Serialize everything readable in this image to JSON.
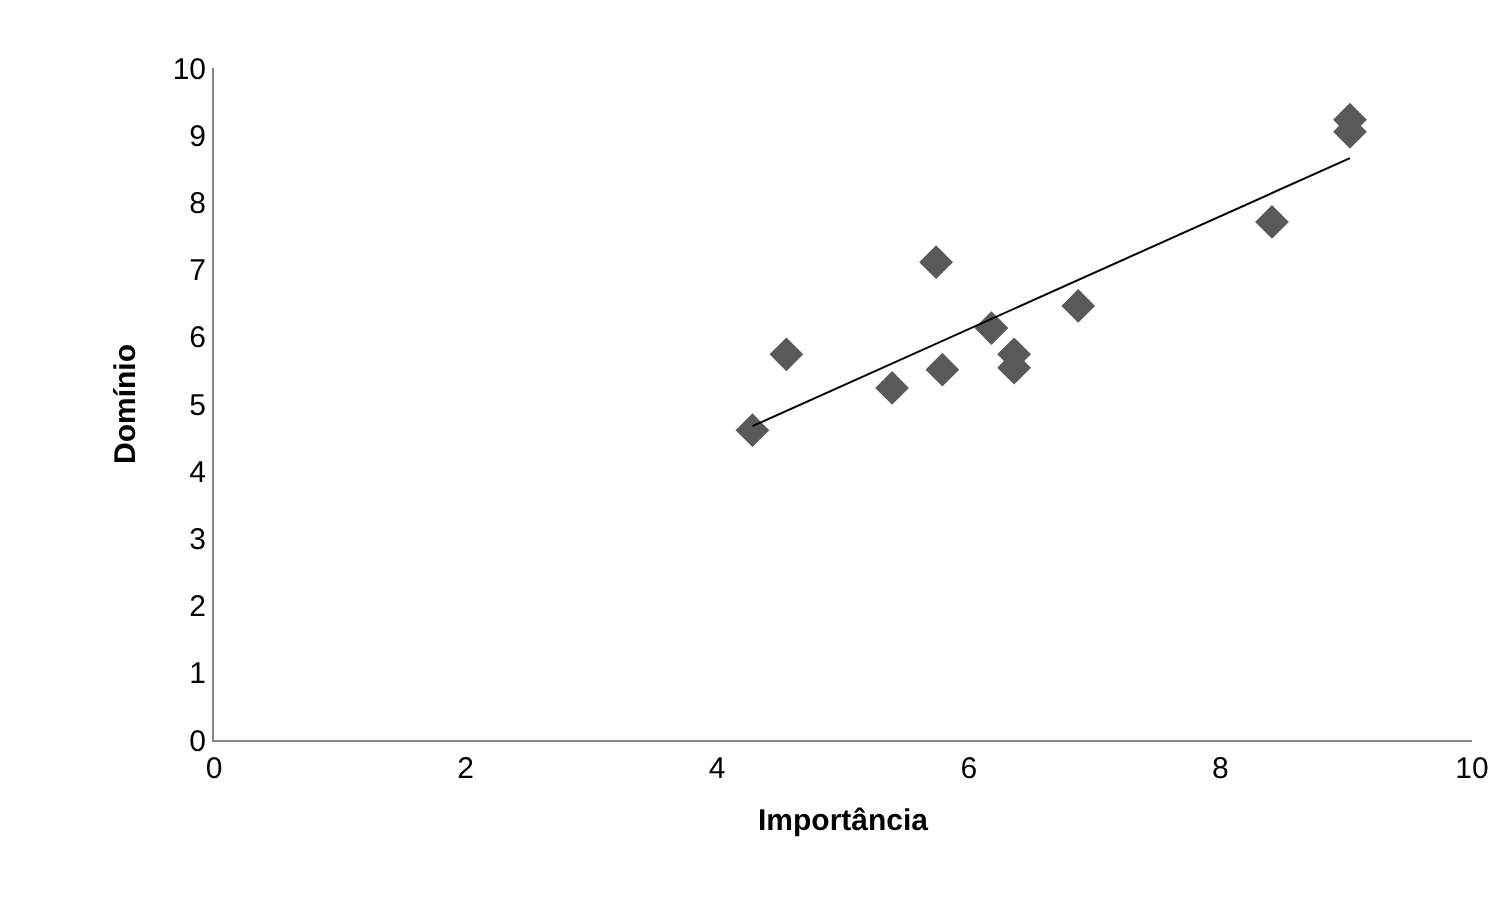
{
  "chart_data": {
    "type": "scatter",
    "xlabel": "Importância",
    "ylabel": "Domínio",
    "xlim": [
      0,
      10
    ],
    "ylim": [
      0,
      10
    ],
    "xticks": [
      0,
      2,
      4,
      6,
      8,
      10
    ],
    "yticks": [
      0,
      1,
      2,
      3,
      4,
      5,
      6,
      7,
      8,
      9,
      10
    ],
    "grid": false,
    "marker": "diamond",
    "series": [
      {
        "color": "#595959",
        "x": [
          4.28,
          4.55,
          5.39,
          5.74,
          5.79,
          6.18,
          6.36,
          6.36,
          6.87,
          8.41,
          9.03,
          9.03
        ],
        "values": [
          4.61,
          5.74,
          5.24,
          7.11,
          5.51,
          6.13,
          5.74,
          5.54,
          6.46,
          7.71,
          9.23,
          9.05
        ]
      },
      {
        "type": "line",
        "color": "#000000",
        "x": [
          4.28,
          9.03
        ],
        "values": [
          4.67,
          8.66
        ],
        "marker": "none"
      }
    ]
  }
}
